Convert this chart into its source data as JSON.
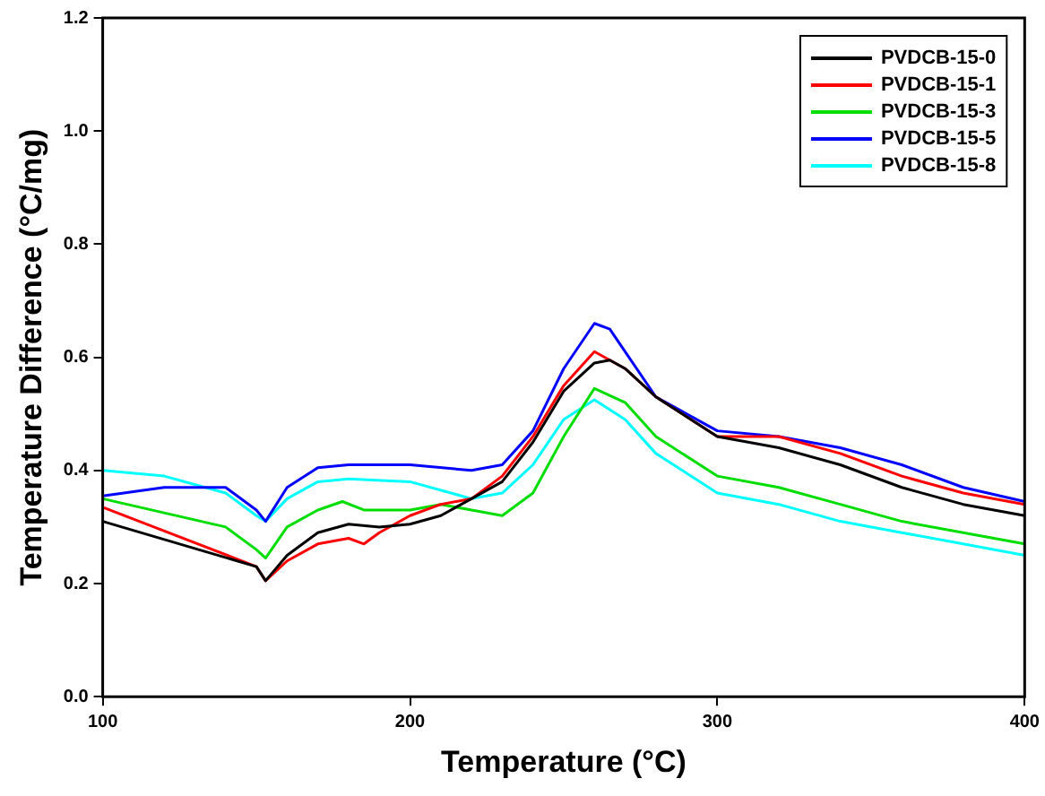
{
  "chart_data": {
    "type": "line",
    "xlabel": "Temperature (°C)",
    "ylabel": "Temperature Difference (°C/mg)",
    "xlim": [
      100,
      400
    ],
    "xticks": [
      100,
      200,
      300,
      400
    ],
    "ylim": [
      0,
      1.2
    ],
    "yticks": [
      {
        "value": 0,
        "label": "0.0"
      },
      {
        "value": 0.2,
        "label": "0.2"
      },
      {
        "value": 0.4,
        "label": "0.4"
      },
      {
        "value": 0.6,
        "label": "0.6"
      },
      {
        "value": 0.8,
        "label": "0.8"
      },
      {
        "value": 1,
        "label": "1.0"
      },
      {
        "value": 1.2,
        "label": "1.2"
      }
    ],
    "grid": false,
    "legend": "top right",
    "marker": "none",
    "line_style": "solid",
    "series": [
      {
        "name": "PVDCB-15-0",
        "color": "#000000",
        "x": [
          100,
          150,
          153,
          160,
          170,
          180,
          190,
          200,
          210,
          220,
          230,
          240,
          250,
          260,
          265,
          270,
          280,
          300,
          320,
          340,
          360,
          380,
          400
        ],
        "values": [
          0.31,
          0.23,
          0.205,
          0.25,
          0.29,
          0.305,
          0.3,
          0.305,
          0.32,
          0.35,
          0.38,
          0.45,
          0.54,
          0.59,
          0.595,
          0.58,
          0.53,
          0.46,
          0.44,
          0.41,
          0.37,
          0.34,
          0.32
        ]
      },
      {
        "name": "PVDCB-15-1",
        "color": "#ff0000",
        "x": [
          100,
          150,
          153,
          160,
          170,
          180,
          185,
          190,
          200,
          210,
          220,
          230,
          240,
          250,
          260,
          270,
          280,
          300,
          320,
          340,
          360,
          380,
          400
        ],
        "values": [
          0.335,
          0.23,
          0.205,
          0.24,
          0.27,
          0.28,
          0.27,
          0.29,
          0.32,
          0.34,
          0.35,
          0.39,
          0.46,
          0.55,
          0.61,
          0.58,
          0.53,
          0.46,
          0.46,
          0.43,
          0.39,
          0.36,
          0.34
        ]
      },
      {
        "name": "PVDCB-15-3",
        "color": "#00dd00",
        "x": [
          100,
          140,
          150,
          153,
          160,
          170,
          178,
          185,
          200,
          210,
          220,
          230,
          240,
          250,
          260,
          270,
          280,
          300,
          320,
          340,
          360,
          380,
          400
        ],
        "values": [
          0.35,
          0.3,
          0.26,
          0.245,
          0.3,
          0.33,
          0.345,
          0.33,
          0.33,
          0.34,
          0.33,
          0.32,
          0.36,
          0.46,
          0.545,
          0.52,
          0.46,
          0.39,
          0.37,
          0.34,
          0.31,
          0.29,
          0.27
        ]
      },
      {
        "name": "PVDCB-15-5",
        "color": "#0000ff",
        "x": [
          100,
          120,
          140,
          150,
          153,
          160,
          170,
          180,
          200,
          220,
          230,
          240,
          250,
          260,
          265,
          270,
          280,
          300,
          320,
          340,
          360,
          380,
          400
        ],
        "values": [
          0.355,
          0.37,
          0.37,
          0.33,
          0.31,
          0.37,
          0.405,
          0.41,
          0.41,
          0.4,
          0.41,
          0.47,
          0.58,
          0.66,
          0.65,
          0.61,
          0.53,
          0.47,
          0.46,
          0.44,
          0.41,
          0.37,
          0.345
        ]
      },
      {
        "name": "PVDCB-15-8",
        "color": "#00ffff",
        "x": [
          100,
          120,
          140,
          150,
          153,
          160,
          170,
          180,
          200,
          220,
          230,
          240,
          250,
          260,
          270,
          280,
          300,
          320,
          340,
          360,
          380,
          400
        ],
        "values": [
          0.4,
          0.39,
          0.36,
          0.32,
          0.31,
          0.35,
          0.38,
          0.385,
          0.38,
          0.35,
          0.36,
          0.41,
          0.49,
          0.525,
          0.49,
          0.43,
          0.36,
          0.34,
          0.31,
          0.29,
          0.27,
          0.25
        ]
      }
    ]
  }
}
